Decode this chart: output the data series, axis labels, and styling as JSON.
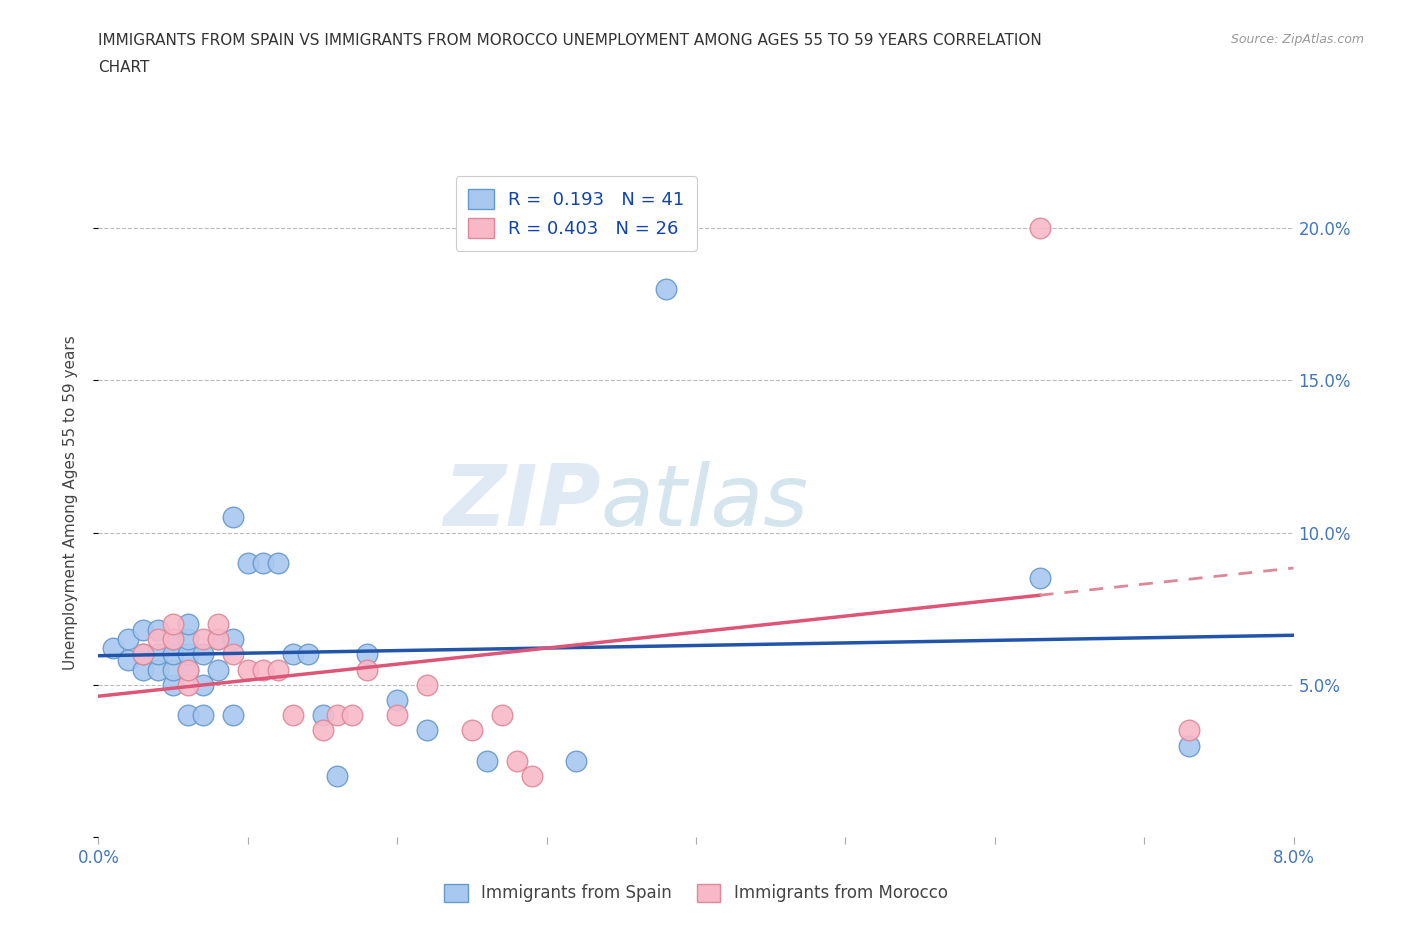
{
  "title_line1": "IMMIGRANTS FROM SPAIN VS IMMIGRANTS FROM MOROCCO UNEMPLOYMENT AMONG AGES 55 TO 59 YEARS CORRELATION",
  "title_line2": "CHART",
  "source": "Source: ZipAtlas.com",
  "ylabel": "Unemployment Among Ages 55 to 59 years",
  "xlim": [
    0.0,
    0.08
  ],
  "ylim": [
    0.0,
    0.22
  ],
  "xticks": [
    0.0,
    0.01,
    0.02,
    0.03,
    0.04,
    0.05,
    0.06,
    0.07,
    0.08
  ],
  "yticks": [
    0.0,
    0.05,
    0.1,
    0.15,
    0.2
  ],
  "yticklabels_right": [
    "",
    "5.0%",
    "10.0%",
    "15.0%",
    "20.0%"
  ],
  "spain_color": "#a8c8f0",
  "morocco_color": "#f8b8c8",
  "spain_edge": "#6699cc",
  "morocco_edge": "#dd8899",
  "trend_spain_color": "#2255aa",
  "trend_morocco_solid_color": "#dd5577",
  "trend_morocco_dash_color": "#dd8899",
  "R_spain": 0.193,
  "N_spain": 41,
  "R_morocco": 0.403,
  "N_morocco": 26,
  "legend_label_spain": "Immigrants from Spain",
  "legend_label_morocco": "Immigrants from Morocco",
  "watermark_ZIP": "ZIP",
  "watermark_atlas": "atlas",
  "background_color": "#ffffff",
  "grid_color": "#bbbbbb",
  "spain_x": [
    0.001,
    0.002,
    0.002,
    0.003,
    0.003,
    0.003,
    0.004,
    0.004,
    0.004,
    0.005,
    0.005,
    0.005,
    0.005,
    0.006,
    0.006,
    0.006,
    0.006,
    0.006,
    0.007,
    0.007,
    0.007,
    0.008,
    0.008,
    0.009,
    0.009,
    0.009,
    0.01,
    0.011,
    0.012,
    0.013,
    0.014,
    0.015,
    0.016,
    0.018,
    0.02,
    0.022,
    0.026,
    0.032,
    0.038,
    0.063,
    0.073
  ],
  "spain_y": [
    0.062,
    0.058,
    0.065,
    0.055,
    0.06,
    0.068,
    0.055,
    0.06,
    0.068,
    0.05,
    0.055,
    0.06,
    0.065,
    0.04,
    0.055,
    0.06,
    0.065,
    0.07,
    0.04,
    0.05,
    0.06,
    0.055,
    0.065,
    0.04,
    0.065,
    0.105,
    0.09,
    0.09,
    0.09,
    0.06,
    0.06,
    0.04,
    0.02,
    0.06,
    0.045,
    0.035,
    0.025,
    0.025,
    0.18,
    0.085,
    0.03
  ],
  "morocco_x": [
    0.003,
    0.004,
    0.005,
    0.005,
    0.006,
    0.006,
    0.007,
    0.008,
    0.008,
    0.009,
    0.01,
    0.011,
    0.012,
    0.013,
    0.015,
    0.016,
    0.017,
    0.018,
    0.02,
    0.022,
    0.025,
    0.027,
    0.028,
    0.029,
    0.063,
    0.073
  ],
  "morocco_y": [
    0.06,
    0.065,
    0.065,
    0.07,
    0.05,
    0.055,
    0.065,
    0.065,
    0.07,
    0.06,
    0.055,
    0.055,
    0.055,
    0.04,
    0.035,
    0.04,
    0.04,
    0.055,
    0.04,
    0.05,
    0.035,
    0.04,
    0.025,
    0.02,
    0.2,
    0.035
  ]
}
